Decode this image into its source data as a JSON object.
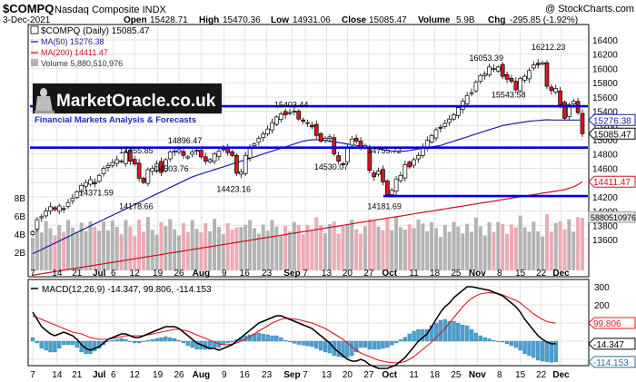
{
  "header": {
    "symbol": "$COMPQ",
    "name": "Nasdaq Composite INDX",
    "date": "3-Dec-2021",
    "open_label": "Open",
    "open": "15428.71",
    "high_label": "High",
    "high": "15470.36",
    "low_label": "Low",
    "low": "14931.06",
    "close_label": "Close",
    "close": "15085.47",
    "volume_label": "Volume",
    "volume": "5.9B",
    "chg_label": "Chg",
    "chg": "-295.85 (-1.92%)",
    "watermark": "@ StockCharts.com"
  },
  "legend": {
    "main": "$COMPQ (Daily) 15085.47",
    "ma50": "MA(50) 15276.38",
    "ma200": "MA(200) 14411.47",
    "volume": "Volume 5,880,510,976"
  },
  "logo": {
    "text": "MarketOracle.co.uk",
    "tagline": "Financial Markets Analysis & Forecasts"
  },
  "colors": {
    "up": "#ffffff",
    "down": "#e0141e",
    "ma50": "#1e1ea0",
    "ma200": "#d01020",
    "hline": "#0000e6",
    "volume": "#b4b4b4",
    "volume_down": "#eeaab4",
    "macd": "#000000",
    "signal": "#e0141e",
    "hist": "#4aa0d0"
  },
  "chart_data": [
    {
      "type": "candlestick",
      "title": "$COMPQ (Daily) 15085.47",
      "ylim": [
        13400,
        16400
      ],
      "y_ticks": [
        13600,
        13800,
        14000,
        14200,
        14400,
        14600,
        14800,
        15000,
        15200,
        15400,
        15600,
        15800,
        16000,
        16200,
        16400
      ],
      "x_tick_labels": [
        "7",
        "14",
        "21",
        "Jul",
        "6",
        "12",
        "19",
        "26",
        "Aug",
        "9",
        "16",
        "23",
        "Sep",
        "7",
        "13",
        "20",
        "27",
        "Oct",
        "11",
        "18",
        "25",
        "Nov",
        "8",
        "15",
        "22",
        "Dec"
      ],
      "x_tick_positions": [
        0.0,
        5.5,
        10.0,
        15.0,
        18.2,
        23.0,
        28.2,
        33.0,
        38.0,
        43.2,
        47.8,
        52.8,
        58.5,
        61.5,
        66.3,
        71.0,
        75.8,
        80.5,
        86.0,
        90.7,
        95.5,
        100.3,
        105.3,
        110.0,
        114.7,
        119.2
      ],
      "closes": [
        13710,
        13880,
        13920,
        14000,
        14060,
        14020,
        14070,
        14030,
        14120,
        14180,
        14270,
        14360,
        14400,
        14440,
        14380,
        14500,
        14600,
        14640,
        14680,
        14720,
        14700,
        14820,
        14700,
        14660,
        14460,
        14400,
        14580,
        14600,
        14660,
        14540,
        14720,
        14830,
        14840,
        14860,
        14780,
        14760,
        14830,
        14840,
        14760,
        14700,
        14720,
        14800,
        14840,
        14860,
        14820,
        14780,
        14530,
        14550,
        14780,
        14880,
        14940,
        15020,
        15080,
        15150,
        15240,
        15320,
        15360,
        15350,
        15380,
        15400,
        15290,
        15260,
        15240,
        15180,
        15060,
        14980,
        15020,
        15040,
        14800,
        14700,
        14650,
        14900,
        15010,
        14980,
        14900,
        14920,
        14570,
        14480,
        14560,
        14410,
        14230,
        14290,
        14450,
        14500,
        14650,
        14620,
        14720,
        14780,
        14900,
        14990,
        15060,
        15140,
        15160,
        15230,
        15290,
        15350,
        15450,
        15540,
        15620,
        15660,
        15810,
        15900,
        15920,
        16020,
        16000,
        16020,
        15890,
        15850,
        15820,
        15700,
        15860,
        15890,
        15970,
        16050,
        16050,
        16080,
        15750,
        15690,
        15720,
        15490,
        15300,
        15490,
        15537,
        15381,
        15085
      ],
      "ma50": [
        13400,
        13430,
        13460,
        13490,
        13520,
        13550,
        13580,
        13610,
        13640,
        13670,
        13700,
        13730,
        13760,
        13790,
        13820,
        13850,
        13880,
        13910,
        13940,
        13970,
        14000,
        14030,
        14060,
        14090,
        14120,
        14150,
        14180,
        14210,
        14240,
        14270,
        14300,
        14330,
        14360,
        14390,
        14420,
        14450,
        14480,
        14500,
        14520,
        14540,
        14560,
        14580,
        14600,
        14620,
        14640,
        14660,
        14680,
        14700,
        14720,
        14740,
        14760,
        14780,
        14800,
        14820,
        14840,
        14860,
        14880,
        14900,
        14920,
        14940,
        14960,
        14980,
        14990,
        15000,
        15000,
        15000,
        14990,
        14980,
        14970,
        14960,
        14950,
        14940,
        14930,
        14920,
        14910,
        14900,
        14890,
        14880,
        14870,
        14860,
        14850,
        14840,
        14840,
        14840,
        14840,
        14850,
        14860,
        14870,
        14880,
        14890,
        14900,
        14910,
        14920,
        14940,
        14960,
        14980,
        15000,
        15020,
        15040,
        15060,
        15080,
        15100,
        15120,
        15140,
        15160,
        15180,
        15200,
        15210,
        15220,
        15230,
        15240,
        15250,
        15260,
        15265,
        15270,
        15275,
        15280,
        15278,
        15276,
        15276,
        15276,
        15276,
        15276,
        15276,
        15276
      ],
      "ma200": [
        13100,
        13110,
        13120,
        13130,
        13140,
        13150,
        13160,
        13170,
        13180,
        13190,
        13200,
        13210,
        13220,
        13230,
        13240,
        13250,
        13260,
        13270,
        13280,
        13290,
        13300,
        13310,
        13320,
        13330,
        13340,
        13350,
        13360,
        13370,
        13380,
        13390,
        13400,
        13410,
        13420,
        13430,
        13440,
        13450,
        13460,
        13470,
        13480,
        13490,
        13500,
        13510,
        13520,
        13530,
        13540,
        13550,
        13560,
        13570,
        13580,
        13590,
        13600,
        13610,
        13620,
        13630,
        13640,
        13650,
        13660,
        13670,
        13680,
        13690,
        13700,
        13710,
        13720,
        13730,
        13740,
        13750,
        13760,
        13770,
        13780,
        13790,
        13800,
        13810,
        13820,
        13830,
        13840,
        13850,
        13860,
        13870,
        13880,
        13890,
        13900,
        13910,
        13920,
        13930,
        13940,
        13950,
        13960,
        13970,
        13980,
        13990,
        14000,
        14010,
        14020,
        14030,
        14040,
        14050,
        14060,
        14070,
        14080,
        14090,
        14100,
        14110,
        14120,
        14130,
        14140,
        14150,
        14160,
        14170,
        14180,
        14190,
        14200,
        14210,
        14220,
        14230,
        14240,
        14250,
        14260,
        14270,
        14280,
        14290,
        14300,
        14320,
        14340,
        14370,
        14411
      ],
      "hlines": [
        15470,
        14890,
        14210
      ],
      "annotations": [
        {
          "i": 15,
          "v": 14371.59,
          "text": "14371.59"
        },
        {
          "i": 24,
          "v": 14178.66,
          "text": "14178.66"
        },
        {
          "i": 24,
          "v": 14755.85,
          "text": "14755.85"
        },
        {
          "i": 32,
          "v": 14503.76,
          "text": "14503.76"
        },
        {
          "i": 35,
          "v": 14896.47,
          "text": "14896.47"
        },
        {
          "i": 46,
          "v": 14423.16,
          "text": "14423.16"
        },
        {
          "i": 59,
          "v": 15403.44,
          "text": "15403.44"
        },
        {
          "i": 68,
          "v": 14530.07,
          "text": "14530.07"
        },
        {
          "i": 80,
          "v": 14181.69,
          "text": "14181.69"
        },
        {
          "i": 80,
          "v": 14755.72,
          "text": "14755.72"
        },
        {
          "i": 103,
          "v": 16053.39,
          "text": "16053.39"
        },
        {
          "i": 108,
          "v": 15543.58,
          "text": "15543.58"
        },
        {
          "i": 117,
          "v": 16212.23,
          "text": "16212.23"
        }
      ],
      "last_values": {
        "ma50": "15276.38",
        "close": "15085.47",
        "ma200": "14411.47"
      },
      "volume": {
        "ylim": [
          0,
          9000000000
        ],
        "tick_labels": [
          "2B",
          "4B",
          "6B",
          "8B"
        ],
        "tick_values": [
          2000000000,
          4000000000,
          6000000000,
          8000000000
        ],
        "last": "5880510976"
      }
    },
    {
      "type": "macd",
      "title": "MACD(12,26,9) -14.347, 99.806, -114.153",
      "ylim": [
        -150,
        320
      ],
      "y_ticks": [
        -100,
        0,
        100,
        200,
        300
      ],
      "macd": [
        160,
        120,
        80,
        60,
        40,
        30,
        40,
        50,
        40,
        30,
        10,
        -20,
        -40,
        -50,
        -40,
        -30,
        -10,
        10,
        20,
        30,
        40,
        40,
        30,
        20,
        20,
        30,
        40,
        50,
        60,
        70,
        80,
        80,
        80,
        70,
        50,
        30,
        10,
        -10,
        -20,
        -30,
        -40,
        -40,
        -50,
        -40,
        -30,
        -20,
        0,
        20,
        40,
        60,
        80,
        100,
        110,
        120,
        130,
        140,
        140,
        130,
        120,
        110,
        100,
        90,
        80,
        70,
        50,
        30,
        10,
        -10,
        -40,
        -60,
        -80,
        -100,
        -110,
        -110,
        -100,
        -110,
        -130,
        -140,
        -150,
        -150,
        -150,
        -140,
        -130,
        -110,
        -90,
        -60,
        -30,
        0,
        20,
        40,
        80,
        120,
        160,
        190,
        210,
        240,
        260,
        280,
        300,
        300,
        295,
        290,
        285,
        280,
        270,
        260,
        250,
        230,
        210,
        190,
        160,
        120,
        90,
        60,
        30,
        10,
        -5,
        -15,
        -14
      ],
      "signal": [
        140,
        130,
        120,
        110,
        100,
        90,
        80,
        70,
        60,
        50,
        45,
        40,
        30,
        20,
        15,
        10,
        10,
        10,
        15,
        20,
        25,
        30,
        30,
        30,
        30,
        30,
        35,
        40,
        45,
        50,
        55,
        60,
        65,
        65,
        60,
        55,
        45,
        35,
        25,
        15,
        5,
        -5,
        -15,
        -20,
        -20,
        -15,
        -10,
        0,
        10,
        25,
        40,
        55,
        70,
        85,
        100,
        110,
        120,
        125,
        125,
        122,
        118,
        112,
        106,
        100,
        90,
        80,
        70,
        55,
        40,
        25,
        10,
        -10,
        -30,
        -50,
        -65,
        -75,
        -85,
        -95,
        -105,
        -110,
        -115,
        -118,
        -120,
        -118,
        -112,
        -100,
        -85,
        -65,
        -45,
        -25,
        -5,
        20,
        45,
        70,
        100,
        130,
        160,
        190,
        215,
        235,
        250,
        260,
        265,
        267,
        265,
        262,
        255,
        245,
        235,
        225,
        210,
        190,
        170,
        150,
        135,
        120,
        108,
        102,
        99.806
      ],
      "last_values": {
        "signal": "99.806",
        "macd": "-14.347",
        "hist": "-114.153"
      }
    }
  ]
}
